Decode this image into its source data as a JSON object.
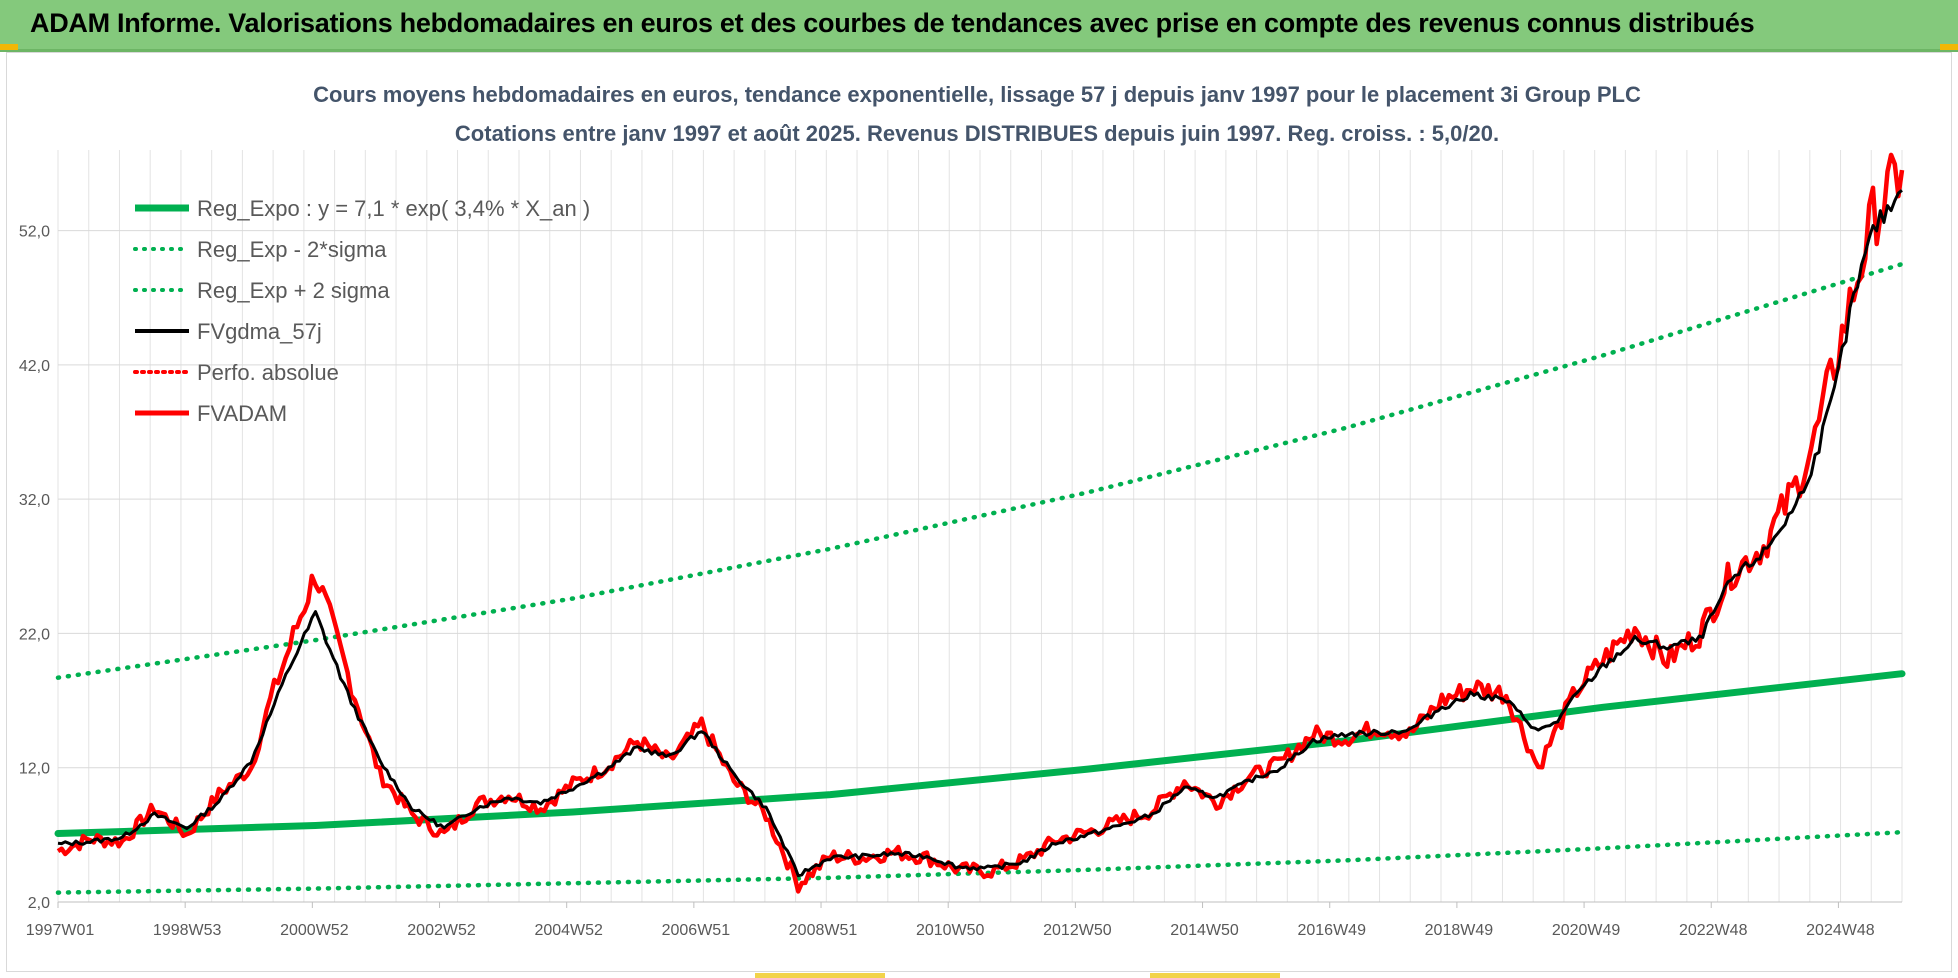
{
  "banner": {
    "title": "ADAM Informe. Valorisations hebdomadaires en euros et des courbes de tendances avec prise en compte des revenus connus distribués"
  },
  "colors": {
    "banner_bg": "#84c97c",
    "reg_expo": "#00b050",
    "sigma_bands": "#00b050",
    "fvgdma": "#000000",
    "perfo_absolue": "#ff0000",
    "fvadam": "#ff0000"
  },
  "chart_data": {
    "type": "line",
    "title": "Cours moyens hebdomadaires en euros, tendance exponentielle, lissage 57 j depuis janv 1997 pour le placement 3i Group PLC",
    "subtitle": "Cotations entre janv 1997 et août 2025. Revenus DISTRIBUES depuis juin 1997. Reg. croiss. : 5,0/20.",
    "x_tick_labels": [
      "1997W01",
      "1998W53",
      "2000W52",
      "2002W52",
      "2004W52",
      "2006W51",
      "2008W51",
      "2010W50",
      "2012W50",
      "2014W50",
      "2016W49",
      "2018W49",
      "2020W49",
      "2022W48",
      "2024W48"
    ],
    "x_range": [
      1997.0,
      2025.65
    ],
    "y_tick_labels": [
      "2,0",
      "12,0",
      "22,0",
      "32,0",
      "42,0",
      "52,0"
    ],
    "y_ticks": [
      2,
      12,
      22,
      32,
      42,
      52
    ],
    "ylim": [
      2,
      58
    ],
    "grid": true,
    "legend_position": "top-left",
    "legend": [
      "Reg_Expo : y = 7,1 * exp( 3,4% *  X_an )",
      "Reg_Exp - 2*sigma",
      "Reg_Exp + 2 sigma",
      "FVgdma_57j",
      "Perfo. absolue",
      "FVADAM"
    ],
    "regression": {
      "a": 7.1,
      "rate": 0.034
    },
    "series": [
      {
        "name": "Reg_Expo : y = 7,1 * exp( 3,4% *  X_an )",
        "style": "solid-thick",
        "x": [
          1997.0,
          2001.0,
          2005.0,
          2009.0,
          2013.0,
          2017.0,
          2021.0,
          2025.65
        ],
        "y": [
          7.1,
          7.7,
          8.7,
          10.0,
          11.9,
          14.0,
          16.5,
          19.0
        ]
      },
      {
        "name": "Reg_Exp - 2*sigma",
        "style": "dotted",
        "x": [
          1997.0,
          2001.0,
          2005.0,
          2009.0,
          2013.0,
          2017.0,
          2021.0,
          2025.65
        ],
        "y": [
          2.7,
          3.0,
          3.4,
          3.8,
          4.4,
          5.1,
          6.0,
          7.2
        ]
      },
      {
        "name": "Reg_Exp + 2 sigma",
        "style": "dotted",
        "x": [
          1997.0,
          2001.0,
          2005.0,
          2009.0,
          2013.0,
          2017.0,
          2021.0,
          2025.65
        ],
        "y": [
          18.7,
          21.5,
          24.6,
          28.3,
          32.5,
          37.3,
          42.7,
          49.5
        ]
      },
      {
        "name": "FVgdma_57j",
        "style": "solid",
        "x": [
          1997.0,
          1997.5,
          1998.0,
          1998.5,
          1999.0,
          1999.5,
          2000.0,
          2000.3,
          2000.6,
          2001.0,
          2001.5,
          2002.0,
          2002.5,
          2003.0,
          2003.5,
          2004.0,
          2004.5,
          2005.0,
          2005.5,
          2006.0,
          2006.5,
          2007.0,
          2007.5,
          2008.0,
          2008.5,
          2009.0,
          2009.5,
          2010.0,
          2010.5,
          2011.0,
          2011.5,
          2012.0,
          2012.5,
          2013.0,
          2013.5,
          2014.0,
          2014.5,
          2015.0,
          2015.5,
          2016.0,
          2016.5,
          2017.0,
          2017.5,
          2018.0,
          2018.5,
          2019.0,
          2019.5,
          2020.0,
          2020.3,
          2020.6,
          2021.0,
          2021.5,
          2022.0,
          2022.5,
          2023.0,
          2023.5,
          2024.0,
          2024.3,
          2024.6,
          2024.9,
          2025.2,
          2025.65
        ],
        "y": [
          6.3,
          6.5,
          6.8,
          8.5,
          7.5,
          9.5,
          12.5,
          16.0,
          19.5,
          23.5,
          17.5,
          12.5,
          9.0,
          7.5,
          9.0,
          9.8,
          9.4,
          10.5,
          11.8,
          13.5,
          12.8,
          14.8,
          11.5,
          9.0,
          4.0,
          5.3,
          5.4,
          5.6,
          5.4,
          4.6,
          4.5,
          5.0,
          6.4,
          7.0,
          7.7,
          8.5,
          10.5,
          9.8,
          11.0,
          12.0,
          14.0,
          14.5,
          14.6,
          14.8,
          16.5,
          17.5,
          17.0,
          14.7,
          15.5,
          17.5,
          19.5,
          21.5,
          21.0,
          21.5,
          26.0,
          28.0,
          31.5,
          35.0,
          40.0,
          47.0,
          52.0,
          55.0
        ]
      },
      {
        "name": "Perfo. absolue",
        "style": "dotted",
        "x": [
          1997.0
        ],
        "y": [
          6.0
        ]
      },
      {
        "name": "FVADAM",
        "style": "solid-thick",
        "x": [
          1997.0,
          1997.5,
          1998.0,
          1998.5,
          1999.0,
          1999.5,
          2000.0,
          2000.3,
          2000.6,
          2001.0,
          2001.5,
          2002.0,
          2002.5,
          2003.0,
          2003.5,
          2004.0,
          2004.5,
          2005.0,
          2005.5,
          2006.0,
          2006.5,
          2007.0,
          2007.5,
          2008.0,
          2008.5,
          2009.0,
          2009.5,
          2010.0,
          2010.5,
          2011.0,
          2011.5,
          2012.0,
          2012.5,
          2013.0,
          2013.5,
          2014.0,
          2014.5,
          2015.0,
          2015.5,
          2016.0,
          2016.5,
          2017.0,
          2017.5,
          2018.0,
          2018.5,
          2019.0,
          2019.5,
          2020.0,
          2020.3,
          2020.6,
          2021.0,
          2021.5,
          2022.0,
          2022.5,
          2023.0,
          2023.5,
          2024.0,
          2024.3,
          2024.6,
          2024.9,
          2025.2,
          2025.65
        ],
        "y": [
          5.8,
          6.7,
          6.5,
          9.0,
          7.0,
          10.0,
          12.0,
          17.0,
          21.0,
          26.5,
          19.0,
          11.5,
          8.5,
          7.0,
          9.3,
          10.0,
          9.0,
          10.8,
          12.0,
          14.0,
          12.5,
          15.2,
          11.0,
          8.5,
          3.3,
          5.4,
          5.3,
          5.7,
          5.3,
          4.4,
          4.3,
          5.1,
          6.6,
          7.2,
          8.0,
          8.8,
          11.0,
          9.4,
          11.3,
          12.4,
          14.5,
          14.2,
          15.0,
          14.5,
          17.0,
          18.0,
          17.5,
          12.0,
          15.0,
          17.8,
          20.0,
          22.5,
          20.0,
          22.0,
          26.5,
          28.5,
          33.0,
          36.5,
          42.0,
          47.5,
          53.0,
          56.5
        ]
      }
    ]
  }
}
